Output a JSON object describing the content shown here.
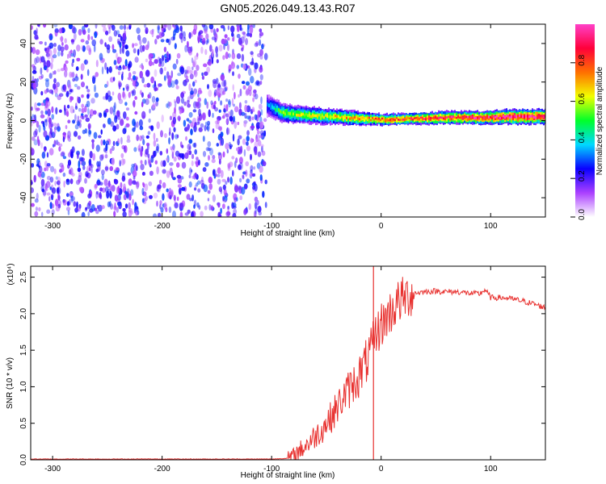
{
  "title": "GN05.2026.049.13.43.R07",
  "colorbar": {
    "label": "Normalized spectral amplitude",
    "ticks": [
      "0.0",
      "0.2",
      "0.4",
      "0.6",
      "0.8"
    ],
    "tick_values": [
      0,
      0.2,
      0.4,
      0.6,
      0.8
    ],
    "colors": [
      "#ffffff",
      "#ab40ff",
      "#0a00ff",
      "#00d8ff",
      "#00ff2a",
      "#f2ff00",
      "#ff7000",
      "#ff003a",
      "#ff40c8"
    ]
  },
  "chart_data": [
    {
      "type": "heatmap",
      "xlabel": "Height of straight line (km)",
      "ylabel": "Frequency (Hz)",
      "xlim": [
        -320,
        150
      ],
      "ylim": [
        -50,
        50
      ],
      "xticks": [
        -300,
        -200,
        -100,
        0,
        100
      ],
      "yticks": [
        -40,
        -20,
        0,
        20,
        40
      ],
      "noise_region_x": [
        -320,
        -105
      ],
      "signal_band": {
        "x": [
          -105,
          -90,
          -75,
          -60,
          -45,
          -30,
          -15,
          0,
          30,
          60,
          90,
          120,
          150
        ],
        "center_hz": [
          8,
          4,
          3,
          2.5,
          2,
          1.5,
          1,
          0.5,
          1,
          1.5,
          1.5,
          2,
          2
        ],
        "halfwidth_hz": [
          6,
          5,
          4.5,
          4.5,
          4,
          4,
          3.5,
          3,
          3,
          3.5,
          3.5,
          4,
          4
        ],
        "peak_amplitude": [
          0.3,
          0.55,
          0.6,
          0.6,
          0.65,
          0.7,
          0.7,
          0.8,
          0.85,
          0.85,
          0.9,
          0.95,
          0.95
        ]
      },
      "colorscale_range": [
        0,
        1
      ]
    },
    {
      "type": "line",
      "xlabel": "Height of straight line (km)",
      "ylabel": "SNR (10 * v/v)",
      "y_multiplier": "(x10⁴)",
      "xlim": [
        -320,
        150
      ],
      "ylim": [
        0,
        2.65
      ],
      "xticks": [
        -300,
        -200,
        -100,
        0,
        100
      ],
      "yticks": [
        0.0,
        0.5,
        1.0,
        1.5,
        2.0,
        2.5
      ],
      "color": "#e8312f",
      "series": [
        {
          "x": [
            -320,
            -250,
            -200,
            -150,
            -100,
            -85,
            -80,
            -75,
            -70,
            -65,
            -60,
            -55,
            -50,
            -45,
            -40,
            -35,
            -30,
            -25,
            -20,
            -15,
            -10,
            -7,
            -5,
            0,
            5,
            10,
            15,
            20,
            25,
            30,
            40,
            50,
            60,
            70,
            80,
            90,
            95,
            100,
            110,
            120,
            130,
            140,
            150
          ],
          "values": [
            0.01,
            0.01,
            0.01,
            0.01,
            0.01,
            0.02,
            0.05,
            0.12,
            0.18,
            0.25,
            0.33,
            0.4,
            0.5,
            0.6,
            0.72,
            0.85,
            0.95,
            1.05,
            1.15,
            1.3,
            1.45,
            1.6,
            1.7,
            1.85,
            1.95,
            2.05,
            2.15,
            2.2,
            2.25,
            2.28,
            2.3,
            2.31,
            2.3,
            2.3,
            2.28,
            2.27,
            2.33,
            2.22,
            2.22,
            2.2,
            2.17,
            2.13,
            2.08
          ]
        }
      ],
      "spikes": [
        {
          "x": -7,
          "top": 2.65,
          "bottom": 0.0
        }
      ]
    }
  ]
}
